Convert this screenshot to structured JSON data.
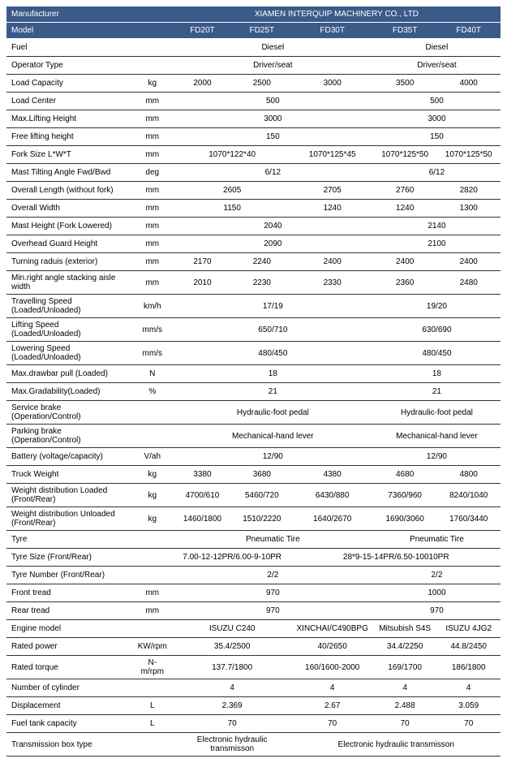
{
  "header": {
    "manufacturer_label": "Manufacturer",
    "company": "XIAMEN INTERQUIP MACHINERY CO., LTD",
    "model_label": "Model",
    "models": [
      "FD20T",
      "FD25T",
      "FD30T",
      "FD35T",
      "FD40T"
    ]
  },
  "rows": [
    {
      "label": "Fuel",
      "unit": "",
      "cells": [
        {
          "v": "Diesel",
          "span": 3
        },
        {
          "v": "Diesel",
          "span": 2
        }
      ]
    },
    {
      "label": "Operator Type",
      "unit": "",
      "cells": [
        {
          "v": "Driver/seat",
          "span": 3
        },
        {
          "v": "Driver/seat",
          "span": 2
        }
      ]
    },
    {
      "label": "Load Capacity",
      "unit": "kg",
      "cells": [
        {
          "v": "2000"
        },
        {
          "v": "2500"
        },
        {
          "v": "3000"
        },
        {
          "v": "3500"
        },
        {
          "v": "4000"
        }
      ]
    },
    {
      "label": "Load Center",
      "unit": "mm",
      "cells": [
        {
          "v": "500",
          "span": 3
        },
        {
          "v": "500",
          "span": 2
        }
      ]
    },
    {
      "label": "Max.Lifting Height",
      "unit": "mm",
      "cells": [
        {
          "v": "3000",
          "span": 3
        },
        {
          "v": "3000",
          "span": 2
        }
      ]
    },
    {
      "label": "Free lifting height",
      "unit": "mm",
      "cells": [
        {
          "v": "150",
          "span": 3
        },
        {
          "v": "150",
          "span": 2
        }
      ]
    },
    {
      "label": "Fork Size  L*W*T",
      "unit": "mm",
      "cells": [
        {
          "v": "1070*122*40",
          "span": 2
        },
        {
          "v": "1070*125*45"
        },
        {
          "v": "1070*125*50"
        },
        {
          "v": "1070*125*50"
        }
      ]
    },
    {
      "label": "Mast Tilting Angle  Fwd/Bwd",
      "unit": "deg",
      "cells": [
        {
          "v": "6/12",
          "span": 3
        },
        {
          "v": "6/12",
          "span": 2
        }
      ]
    },
    {
      "label": "Overall Length (without fork)",
      "unit": "mm",
      "cells": [
        {
          "v": "2605",
          "span": 2
        },
        {
          "v": "2705"
        },
        {
          "v": "2760"
        },
        {
          "v": "2820"
        }
      ]
    },
    {
      "label": "Overall Width",
      "unit": "mm",
      "cells": [
        {
          "v": "1150",
          "span": 2
        },
        {
          "v": "1240"
        },
        {
          "v": "1240"
        },
        {
          "v": "1300"
        }
      ]
    },
    {
      "label": "Mast Height (Fork Lowered)",
      "unit": "mm",
      "cells": [
        {
          "v": "2040",
          "span": 3
        },
        {
          "v": "2140",
          "span": 2
        }
      ]
    },
    {
      "label": "Overhead Guard Height",
      "unit": "mm",
      "cells": [
        {
          "v": "2090",
          "span": 3
        },
        {
          "v": "2100",
          "span": 2
        }
      ]
    },
    {
      "label": "Turning raduis (exterior)",
      "unit": "mm",
      "cells": [
        {
          "v": "2170"
        },
        {
          "v": "2240"
        },
        {
          "v": "2400"
        },
        {
          "v": "2400"
        },
        {
          "v": "2400"
        }
      ]
    },
    {
      "label": "Min.right angle stacking aisle width",
      "unit": "mm",
      "cells": [
        {
          "v": "2010"
        },
        {
          "v": "2230"
        },
        {
          "v": "2330"
        },
        {
          "v": "2360"
        },
        {
          "v": "2480"
        }
      ]
    },
    {
      "label": "Travelling Speed (Loaded/Unloaded)",
      "unit": "km/h",
      "cells": [
        {
          "v": "17/19",
          "span": 3
        },
        {
          "v": "19/20",
          "span": 2
        }
      ]
    },
    {
      "label": "Lifting Speed (Loaded/Unloaded)",
      "unit": "mm/s",
      "cells": [
        {
          "v": "650/710",
          "span": 3
        },
        {
          "v": "630/690",
          "span": 2
        }
      ]
    },
    {
      "label": "Lowering Speed (Loaded/Unloaded)",
      "unit": "mm/s",
      "cells": [
        {
          "v": "480/450",
          "span": 3
        },
        {
          "v": "480/450",
          "span": 2
        }
      ]
    },
    {
      "label": "Max.drawbar pull (Loaded)",
      "unit": "N",
      "cells": [
        {
          "v": "18",
          "span": 3
        },
        {
          "v": "18",
          "span": 2
        }
      ]
    },
    {
      "label": "Max.Gradability(Loaded)",
      "unit": "%",
      "cells": [
        {
          "v": "21",
          "span": 3
        },
        {
          "v": "21",
          "span": 2
        }
      ]
    },
    {
      "label": "Service brake (Operation/Control)",
      "unit": "",
      "cells": [
        {
          "v": "Hydraulic-foot pedal",
          "span": 3
        },
        {
          "v": "Hydraulic-foot pedal",
          "span": 2
        }
      ]
    },
    {
      "label": "Parking brake (Operation/Control)",
      "unit": "",
      "cells": [
        {
          "v": "Mechanical-hand lever",
          "span": 3
        },
        {
          "v": "Mechanical-hand lever",
          "span": 2
        }
      ]
    },
    {
      "label": "Battery (voltage/capacity)",
      "unit": "V/ah",
      "cells": [
        {
          "v": "12/90",
          "span": 3
        },
        {
          "v": "12/90",
          "span": 2
        }
      ]
    },
    {
      "label": "Truck Weight",
      "unit": "kg",
      "cells": [
        {
          "v": "3380"
        },
        {
          "v": "3680"
        },
        {
          "v": "4380"
        },
        {
          "v": "4680"
        },
        {
          "v": "4800"
        }
      ]
    },
    {
      "label": "Weight distribution Loaded (Front/Rear)",
      "unit": "kg",
      "cells": [
        {
          "v": "4700/610"
        },
        {
          "v": "5460/720"
        },
        {
          "v": "6430/880"
        },
        {
          "v": "7360/960"
        },
        {
          "v": "8240/1040"
        }
      ]
    },
    {
      "label": "Weight distribution Unloaded (Front/Rear)",
      "unit": "kg",
      "cells": [
        {
          "v": "1460/1800"
        },
        {
          "v": "1510/2220"
        },
        {
          "v": "1640/2670"
        },
        {
          "v": "1690/3060"
        },
        {
          "v": "1760/3440"
        }
      ]
    },
    {
      "label": "Tyre",
      "unit": "",
      "cells": [
        {
          "v": "Pneumatic Tire",
          "span": 3
        },
        {
          "v": "Pneumatic Tire",
          "span": 2
        }
      ]
    },
    {
      "label": "Tyre Size  (Front/Rear)",
      "unit": "",
      "cells": [
        {
          "v": "7.00-12-12PR/6.00-9-10PR",
          "span": 2
        },
        {
          "v": "28*9-15-14PR/6.50-10010PR",
          "span": 3
        }
      ]
    },
    {
      "label": "Tyre Number  (Front/Rear)",
      "unit": "",
      "cells": [
        {
          "v": "2/2",
          "span": 3
        },
        {
          "v": "2/2",
          "span": 2
        }
      ]
    },
    {
      "label": "Front tread",
      "unit": "mm",
      "cells": [
        {
          "v": "970",
          "span": 3
        },
        {
          "v": "1000",
          "span": 2
        }
      ]
    },
    {
      "label": "Rear tread",
      "unit": "mm",
      "cells": [
        {
          "v": "970",
          "span": 3
        },
        {
          "v": "970",
          "span": 2
        }
      ]
    },
    {
      "label": "Engine model",
      "unit": "",
      "cells": [
        {
          "v": "ISUZU C240",
          "span": 2
        },
        {
          "v": "XINCHAI/C490BPG"
        },
        {
          "v": "Mitsubish S4S"
        },
        {
          "v": "ISUZU 4JG2"
        }
      ]
    },
    {
      "label": "Rated power",
      "unit": "KW/rpm",
      "cells": [
        {
          "v": "35.4/2500",
          "span": 2
        },
        {
          "v": "40/2650"
        },
        {
          "v": "34.4/2250"
        },
        {
          "v": "44.8/2450"
        }
      ]
    },
    {
      "label": "Rated torque",
      "unit": "N-m/rpm",
      "cells": [
        {
          "v": "137.7/1800",
          "span": 2
        },
        {
          "v": "160/1600-2000"
        },
        {
          "v": "169/1700"
        },
        {
          "v": "186/1800"
        }
      ]
    },
    {
      "label": "Number of cylinder",
      "unit": "",
      "cells": [
        {
          "v": "4",
          "span": 2
        },
        {
          "v": "4"
        },
        {
          "v": "4"
        },
        {
          "v": "4"
        }
      ]
    },
    {
      "label": "Displacement",
      "unit": "L",
      "cells": [
        {
          "v": "2.369",
          "span": 2
        },
        {
          "v": "2.67"
        },
        {
          "v": "2.488"
        },
        {
          "v": "3.059"
        }
      ]
    },
    {
      "label": "Fuel tank capacity",
      "unit": "L",
      "cells": [
        {
          "v": "70",
          "span": 2
        },
        {
          "v": "70"
        },
        {
          "v": "70"
        },
        {
          "v": "70"
        }
      ]
    },
    {
      "label": "Transmission box type",
      "unit": "",
      "cells": [
        {
          "v": "Electronic hydraulic transmisson",
          "span": 2
        },
        {
          "v": "Electronic hydraulic transmisson",
          "span": 3
        }
      ]
    }
  ],
  "style": {
    "header_bg": "#3a5a8a",
    "model_bg": "#6a85aa",
    "border_color": "#333333",
    "font_size_body": 10
  }
}
